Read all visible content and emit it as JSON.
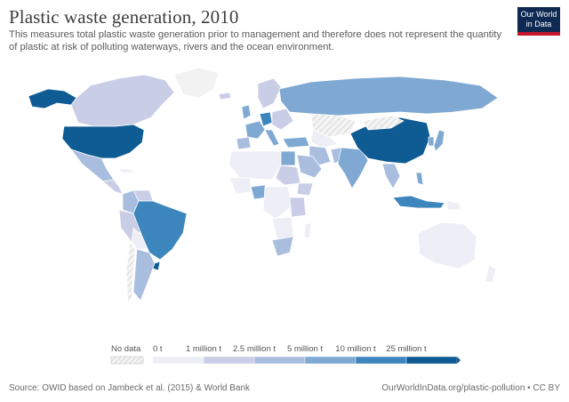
{
  "title": "Plastic waste generation, 2010",
  "subtitle": "This measures total plastic waste generation prior to management and therefore does not represent the quantity of plastic at risk of polluting waterways, rivers and the ocean environment.",
  "logo": {
    "line1": "Our World",
    "line2": "in Data"
  },
  "legend": {
    "no_data_label": "No data",
    "bins": [
      {
        "label": "0 t",
        "color": "#eeeef6"
      },
      {
        "label": "1 million t",
        "color": "#c9cde6"
      },
      {
        "label": "2.5 million t",
        "color": "#a9bedf"
      },
      {
        "label": "5 million t",
        "color": "#7fa9d2"
      },
      {
        "label": "10 million t",
        "color": "#3d86bd"
      },
      {
        "label": "25 million t",
        "color": "#0f5b94"
      }
    ]
  },
  "map_colors": {
    "no_data": "#f2f2f2",
    "border": "#ffffff",
    "lowest": "#eeeef6",
    "low": "#c9cde6",
    "mid": "#a9bedf",
    "mid_high": "#7fa9d2",
    "high": "#3d86bd",
    "highest": "#0f5b94"
  },
  "footer": {
    "source": "Source: OWID based on Jambeck et al. (2015) & World Bank",
    "url": "OurWorldInData.org/plastic-pollution • CC BY"
  }
}
